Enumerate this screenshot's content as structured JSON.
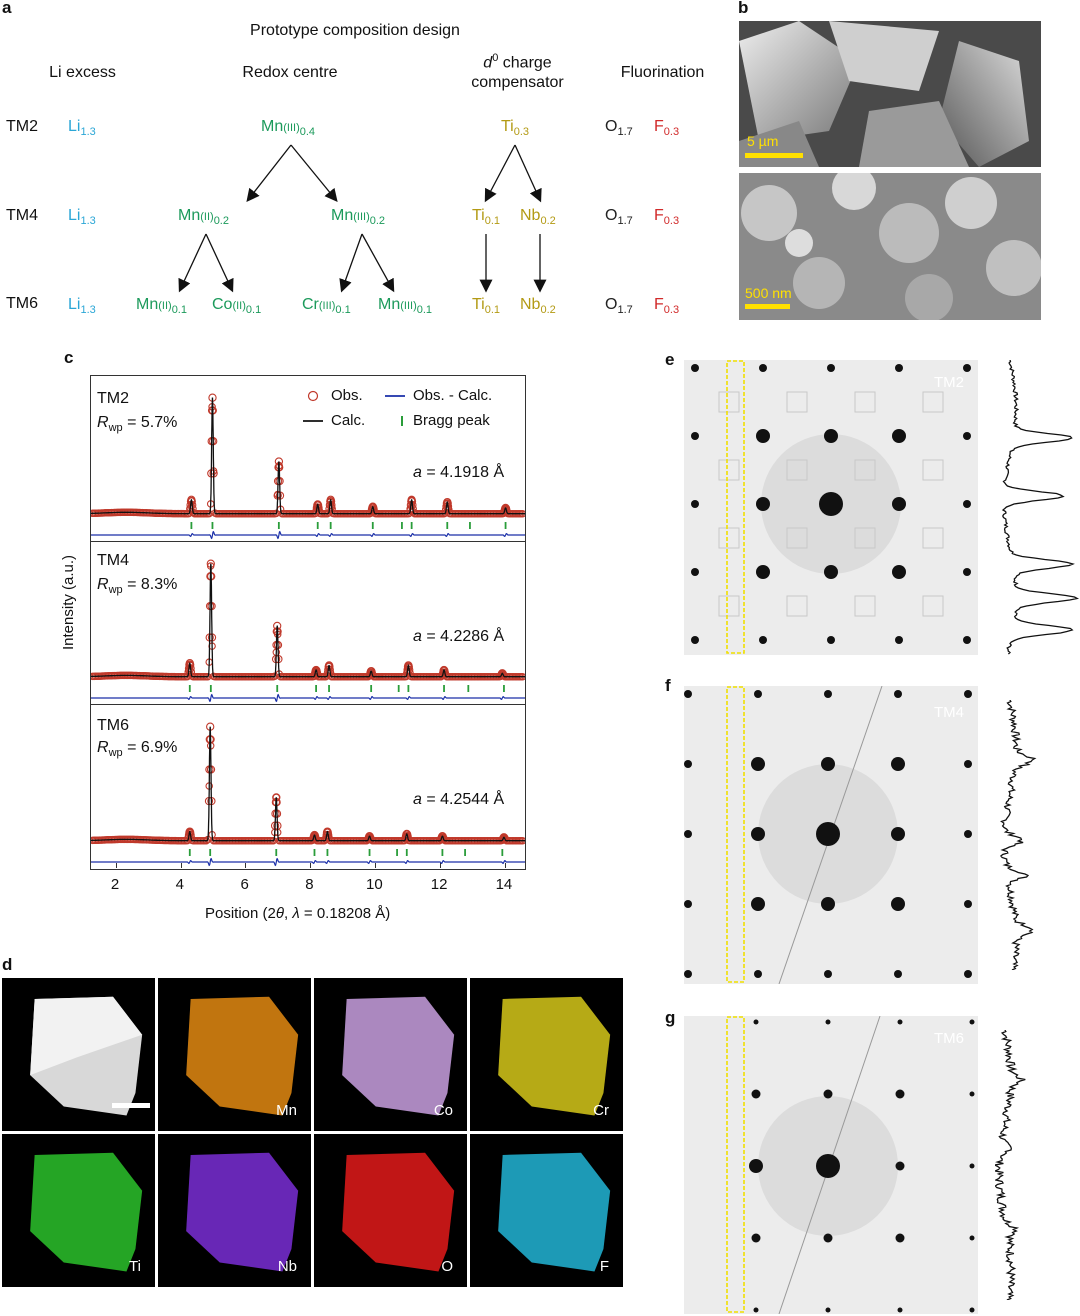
{
  "panel_a": {
    "label": "a",
    "title": "Prototype composition design",
    "headers": {
      "li_excess": "Li excess",
      "redox": "Redox centre",
      "d0_sup": "0",
      "d0_pre": "d",
      "d0_rest": " charge",
      "d0_line2": "compensator",
      "fluor": "Fluorination"
    },
    "rows": [
      {
        "name": "TM2",
        "li": "Li",
        "li_sub": "1.3"
      },
      {
        "name": "TM4",
        "li": "Li",
        "li_sub": "1.3"
      },
      {
        "name": "TM6",
        "li": "Li",
        "li_sub": "1.3"
      }
    ],
    "redox": {
      "tm2": {
        "el": "Mn",
        "ox": "(III)",
        "sub": "0.4"
      },
      "tm4": [
        {
          "el": "Mn",
          "ox": "(II)",
          "sub": "0.2"
        },
        {
          "el": "Mn",
          "ox": "(III)",
          "sub": "0.2"
        }
      ],
      "tm6": [
        {
          "el": "Mn",
          "ox": "(II)",
          "sub": "0.1"
        },
        {
          "el": "Co",
          "ox": "(II)",
          "sub": "0.1"
        },
        {
          "el": "Cr",
          "ox": "(III)",
          "sub": "0.1"
        },
        {
          "el": "Mn",
          "ox": "(III)",
          "sub": "0.1"
        }
      ]
    },
    "d0": {
      "tm2": {
        "el": "Ti",
        "sub": "0.3"
      },
      "tm4": [
        {
          "el": "Ti",
          "sub": "0.1"
        },
        {
          "el": "Nb",
          "sub": "0.2"
        }
      ],
      "tm6": [
        {
          "el": "Ti",
          "sub": "0.1"
        },
        {
          "el": "Nb",
          "sub": "0.2"
        }
      ]
    },
    "anion": {
      "o": "O",
      "o_sub": "1.7",
      "f": "F",
      "f_sub": "0.3"
    }
  },
  "panel_b": {
    "label": "b",
    "scale_top": "5 µm",
    "scale_bottom": "500 nm"
  },
  "panel_c": {
    "label": "c",
    "legend": {
      "obs": "Obs.",
      "diff": "Obs. - Calc.",
      "calc": "Calc.",
      "bragg": "Bragg peak"
    },
    "ylabel": "Intensity (a.u.)",
    "xlabel": "Position (2θ, λ = 0.18208 Å)",
    "xlabel_parts": {
      "pre": "Position (2",
      "theta": "θ",
      "mid": ", ",
      "lam": "λ",
      "post": " = 0.18208 Å)"
    },
    "x_ticks": [
      "2",
      "4",
      "6",
      "8",
      "10",
      "12",
      "14"
    ]
  },
  "chart_data": [
    {
      "type": "line",
      "name": "TM2",
      "rwp": "5.7%",
      "lattice": "4.1918 Å",
      "xlim": [
        1.2,
        14.6
      ],
      "peaks": [
        {
          "x": 4.3,
          "y": 0.12
        },
        {
          "x": 4.95,
          "y": 1.0
        },
        {
          "x": 7.0,
          "y": 0.45
        },
        {
          "x": 8.2,
          "y": 0.08
        },
        {
          "x": 8.6,
          "y": 0.12
        },
        {
          "x": 9.9,
          "y": 0.06
        },
        {
          "x": 11.1,
          "y": 0.12
        },
        {
          "x": 12.2,
          "y": 0.1
        },
        {
          "x": 14.0,
          "y": 0.05
        }
      ],
      "bragg": [
        4.3,
        4.95,
        7.0,
        8.2,
        8.6,
        9.9,
        10.8,
        11.1,
        12.2,
        12.9,
        14.0
      ]
    },
    {
      "type": "line",
      "name": "TM4",
      "rwp": "8.3%",
      "lattice": "4.2286 Å",
      "xlim": [
        1.2,
        14.6
      ],
      "peaks": [
        {
          "x": 4.25,
          "y": 0.12
        },
        {
          "x": 4.9,
          "y": 1.0
        },
        {
          "x": 6.95,
          "y": 0.45
        },
        {
          "x": 8.15,
          "y": 0.06
        },
        {
          "x": 8.55,
          "y": 0.1
        },
        {
          "x": 9.85,
          "y": 0.05
        },
        {
          "x": 11.0,
          "y": 0.1
        },
        {
          "x": 12.1,
          "y": 0.06
        },
        {
          "x": 13.9,
          "y": 0.03
        }
      ],
      "bragg": [
        4.25,
        4.9,
        6.95,
        8.15,
        8.55,
        9.85,
        10.7,
        11.0,
        12.1,
        12.85,
        13.95
      ]
    },
    {
      "type": "line",
      "name": "TM6",
      "rwp": "6.9%",
      "lattice": "4.2544 Å",
      "xlim": [
        1.2,
        14.6
      ],
      "peaks": [
        {
          "x": 4.25,
          "y": 0.08
        },
        {
          "x": 4.88,
          "y": 1.0
        },
        {
          "x": 6.92,
          "y": 0.38
        },
        {
          "x": 8.1,
          "y": 0.05
        },
        {
          "x": 8.5,
          "y": 0.08
        },
        {
          "x": 9.8,
          "y": 0.04
        },
        {
          "x": 10.95,
          "y": 0.06
        },
        {
          "x": 12.05,
          "y": 0.04
        },
        {
          "x": 13.95,
          "y": 0.03
        }
      ],
      "bragg": [
        4.25,
        4.88,
        6.92,
        8.1,
        8.5,
        9.8,
        10.65,
        10.95,
        12.05,
        12.75,
        13.9
      ]
    }
  ],
  "panel_d": {
    "label": "d",
    "maps": [
      {
        "el": "",
        "color": "#bdbdbd"
      },
      {
        "el": "Mn",
        "color": "#e38a12"
      },
      {
        "el": "Co",
        "color": "#c9a0e0"
      },
      {
        "el": "Cr",
        "color": "#d6c81a"
      },
      {
        "el": "Ti",
        "color": "#2bc22b"
      },
      {
        "el": "Nb",
        "color": "#7a2ed6"
      },
      {
        "el": "O",
        "color": "#e31a1a"
      },
      {
        "el": "F",
        "color": "#22b5d6"
      }
    ]
  },
  "panel_e": {
    "label": "e",
    "tag": "TM2"
  },
  "panel_f": {
    "label": "f",
    "tag": "TM4"
  },
  "panel_g": {
    "label": "g",
    "tag": "TM6"
  }
}
